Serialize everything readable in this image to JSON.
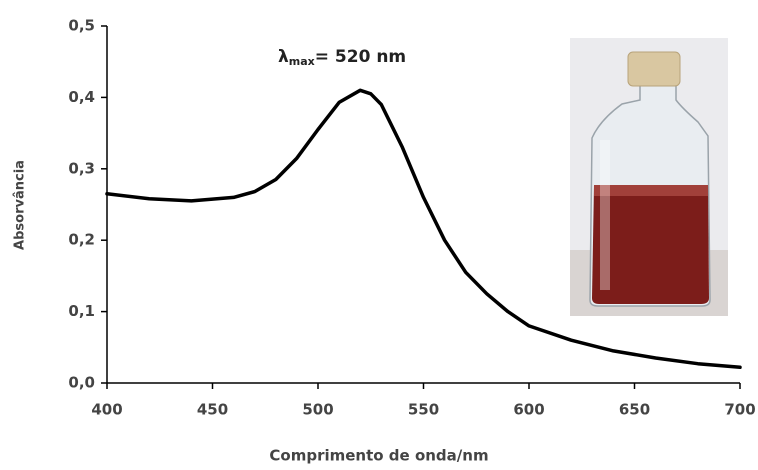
{
  "chart_data": {
    "type": "line",
    "x_label": "Comprimento de onda/nm",
    "y_label": "Absorvância",
    "annotation": [
      "λ",
      "max",
      "= 520 nm"
    ],
    "x": [
      400,
      420,
      440,
      460,
      470,
      480,
      490,
      500,
      510,
      520,
      525,
      530,
      540,
      550,
      560,
      570,
      580,
      590,
      600,
      620,
      640,
      660,
      680,
      700
    ],
    "series": [
      {
        "color": "#000000",
        "values": [
          0.265,
          0.258,
          0.255,
          0.26,
          0.268,
          0.285,
          0.315,
          0.355,
          0.393,
          0.41,
          0.405,
          0.39,
          0.33,
          0.26,
          0.2,
          0.155,
          0.125,
          0.1,
          0.08,
          0.06,
          0.045,
          0.035,
          0.027,
          0.022
        ]
      }
    ],
    "xlim": [
      400,
      700
    ],
    "xticks": [
      400,
      450,
      500,
      550,
      600,
      650,
      700
    ],
    "ylim": [
      0,
      0.5
    ],
    "yticks": [
      {
        "value": 0,
        "label": "0,0"
      },
      {
        "value": 0.1,
        "label": "0,1"
      },
      {
        "value": 0.2,
        "label": "0,2"
      },
      {
        "value": 0.3,
        "label": "0,3"
      },
      {
        "value": 0.4,
        "label": "0,4"
      },
      {
        "value": 0.5,
        "label": "0,5"
      }
    ]
  }
}
